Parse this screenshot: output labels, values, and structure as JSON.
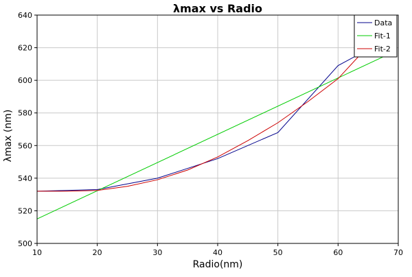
{
  "chart_data": {
    "type": "line",
    "title": "λmax vs Radio",
    "xlabel": "Radio(nm)",
    "ylabel": "λmax (nm)",
    "xlim": [
      10,
      70
    ],
    "ylim": [
      500,
      640
    ],
    "xticks": [
      10,
      20,
      30,
      40,
      50,
      60,
      70
    ],
    "yticks": [
      500,
      520,
      540,
      560,
      580,
      600,
      620,
      640
    ],
    "grid": true,
    "legend_position": "top-right",
    "series": [
      {
        "name": "Data",
        "color": "#00008b",
        "points": [
          [
            10,
            532
          ],
          [
            20,
            533
          ],
          [
            30,
            540
          ],
          [
            40,
            552
          ],
          [
            50,
            568
          ],
          [
            60,
            609
          ],
          [
            65,
            619
          ]
        ]
      },
      {
        "name": "Fit-1",
        "color": "#00cc00",
        "points": [
          [
            10,
            515
          ],
          [
            69,
            617
          ]
        ]
      },
      {
        "name": "Fit-2",
        "color": "#cc0000",
        "points": [
          [
            10,
            532
          ],
          [
            15,
            532
          ],
          [
            20,
            532.5
          ],
          [
            25,
            535
          ],
          [
            30,
            539
          ],
          [
            35,
            545
          ],
          [
            40,
            553
          ],
          [
            45,
            563
          ],
          [
            50,
            574
          ],
          [
            55,
            587
          ],
          [
            60,
            601
          ],
          [
            64.5,
            619
          ]
        ]
      }
    ]
  }
}
